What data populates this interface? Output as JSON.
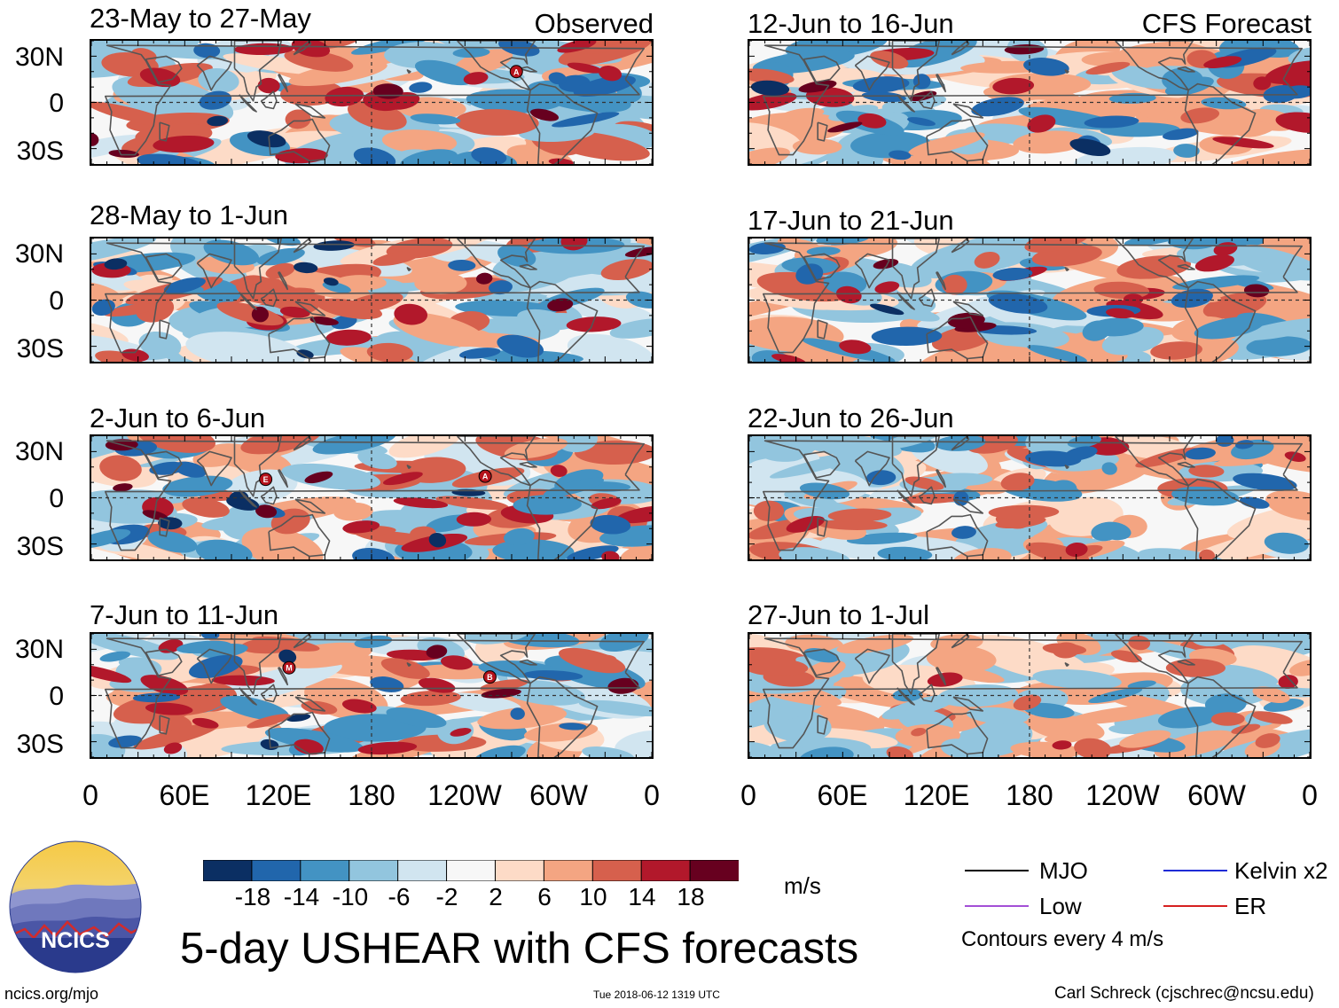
{
  "chart_data": {
    "type": "heatmap",
    "title": "5-day USHEAR with CFS forecasts",
    "units": "m/s",
    "variable": "USHEAR",
    "colorbar": {
      "levels": [
        "-18",
        "-14",
        "-10",
        "-6",
        "-2",
        "2",
        "6",
        "10",
        "14",
        "18"
      ],
      "colors": [
        "#0b2f63",
        "#2166ac",
        "#4393c3",
        "#92c5de",
        "#d1e5f0",
        "#f7f7f7",
        "#fddbc7",
        "#f4a582",
        "#d6604d",
        "#b2182b",
        "#67001f"
      ]
    },
    "lat_ticks": [
      "30N",
      "0",
      "30S"
    ],
    "lon_ticks": [
      "0",
      "60E",
      "120E",
      "180",
      "120W",
      "60W",
      "0"
    ],
    "columns": [
      {
        "label": "Observed",
        "panels": [
          {
            "title": "23-May to 27-May",
            "markers": [
              {
                "letter": "A",
                "lon": -87,
                "lat": 20
              }
            ]
          },
          {
            "title": "28-May to 1-Jun",
            "markers": []
          },
          {
            "title": "2-Jun to 6-Jun",
            "markers": [
              {
                "letter": "E",
                "lon": 112,
                "lat": 12
              },
              {
                "letter": "A",
                "lon": -107,
                "lat": 14
              }
            ]
          },
          {
            "title": "7-Jun to 11-Jun",
            "markers": [
              {
                "letter": "M",
                "lon": 127,
                "lat": 18
              },
              {
                "letter": "B",
                "lon": -104,
                "lat": 12
              }
            ]
          }
        ]
      },
      {
        "label": "CFS Forecast",
        "panels": [
          {
            "title": "12-Jun to 16-Jun",
            "markers": []
          },
          {
            "title": "17-Jun to 21-Jun",
            "markers": []
          },
          {
            "title": "22-Jun to 26-Jun",
            "markers": []
          },
          {
            "title": "27-Jun to 1-Jul",
            "markers": []
          }
        ]
      }
    ],
    "legend": [
      {
        "label": "MJO",
        "color": "#000000"
      },
      {
        "label": "Kelvin x2",
        "color": "#1f2bd6"
      },
      {
        "label": "Low",
        "color": "#a34fd6"
      },
      {
        "label": "ER",
        "color": "#d62020"
      }
    ],
    "contour_note": "Contours every 4 m/s"
  },
  "logo": {
    "text": "NCICS"
  },
  "footer": {
    "url": "ncics.org/mjo",
    "timestamp": "Tue 2018-06-12 1319 UTC",
    "credit": "Carl Schreck (cjschrec@ncsu.edu)"
  }
}
